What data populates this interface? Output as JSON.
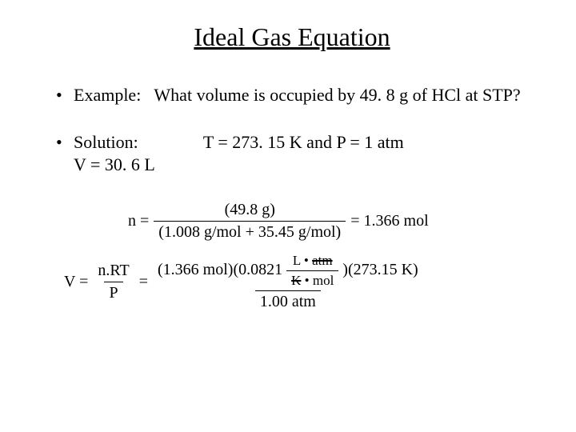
{
  "title": "Ideal Gas Equation",
  "bullets": {
    "example_label": "Example:",
    "example_text": "What volume is occupied by 49. 8 g of HCl at STP?",
    "solution_label": "Solution:",
    "solution_answer": "V = 30. 6 L",
    "conditions": "T = 273. 15 K   and   P = 1 atm"
  },
  "eq1": {
    "lhs": "n =",
    "num": "(49.8 g)",
    "den": "(1.008 g/mol + 35.45 g/mol)",
    "rhs": "= 1.366 mol"
  },
  "eq2": {
    "lhs": "V =",
    "sym_num": "n.RT",
    "sym_den": "P",
    "eq": "=",
    "num_part1": "(1.366 mol)(0.0821",
    "num_unit_top": "L • atm",
    "num_unit_bot": "K • mol",
    "num_part2": ")(273.15 K)",
    "den": "1.00 atm"
  },
  "styles": {
    "title_fontsize": 32,
    "bullet_fontsize": 22,
    "eq_fontsize": 20,
    "text_color": "#000000",
    "background_color": "#ffffff"
  }
}
